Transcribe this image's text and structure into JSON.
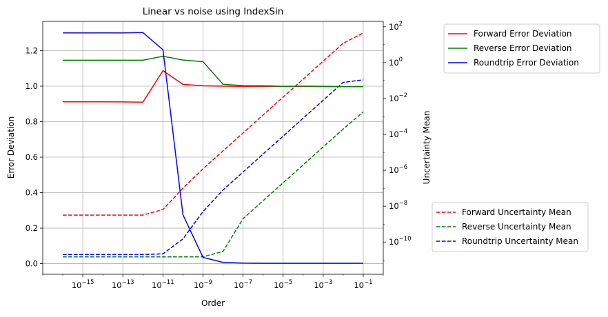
{
  "chart_data": {
    "type": "line",
    "title": "Linear vs noise using IndexSin",
    "xlabel": "Order",
    "ylabel_left": "Error Deviation",
    "ylabel_right": "Uncertainty Mean",
    "x_scale": "log",
    "xlim": [
      1e-17,
      1
    ],
    "x_ticks": [
      1e-15,
      1e-13,
      1e-11,
      1e-09,
      1e-07,
      1e-05,
      0.001,
      0.1
    ],
    "x_tick_labels": [
      {
        "base": "10",
        "exp": "−15"
      },
      {
        "base": "10",
        "exp": "−13"
      },
      {
        "base": "10",
        "exp": "−11"
      },
      {
        "base": "10",
        "exp": "−9"
      },
      {
        "base": "10",
        "exp": "−7"
      },
      {
        "base": "10",
        "exp": "−5"
      },
      {
        "base": "10",
        "exp": "−3"
      },
      {
        "base": "10",
        "exp": "−1"
      }
    ],
    "y_left_lim": [
      -0.06,
      1.365
    ],
    "y_left_ticks": [
      0.0,
      0.2,
      0.4,
      0.6,
      0.8,
      1.0,
      1.2
    ],
    "y_left_tick_labels": [
      "0.0",
      "0.2",
      "0.4",
      "0.6",
      "0.8",
      "1.0",
      "1.2"
    ],
    "y_right_scale": "log",
    "y_right_lim": [
      1.6e-12,
      200
    ],
    "y_right_ticks": [
      1e-10,
      1e-08,
      1e-06,
      0.0001,
      0.01,
      1,
      100
    ],
    "y_right_tick_labels": [
      {
        "base": "10",
        "exp": "−10"
      },
      {
        "base": "10",
        "exp": "−8"
      },
      {
        "base": "10",
        "exp": "−6"
      },
      {
        "base": "10",
        "exp": "−4"
      },
      {
        "base": "10",
        "exp": "−2"
      },
      {
        "base": "10",
        "exp": "0"
      },
      {
        "base": "10",
        "exp": "2"
      }
    ],
    "grid": true,
    "x": [
      1e-16,
      1e-15,
      1e-14,
      1e-13,
      1e-12,
      1e-11,
      1e-10,
      1e-09,
      1e-08,
      1e-07,
      1e-06,
      1e-05,
      0.0001,
      0.001,
      0.01,
      0.1
    ],
    "series_left": [
      {
        "name": "Forward Error Deviation",
        "color": "#ff0000",
        "axis": "left",
        "style": "solid",
        "values": [
          0.912,
          0.912,
          0.912,
          0.911,
          0.91,
          1.087,
          1.01,
          1.002,
          1.0,
          0.999,
          0.999,
          0.999,
          0.999,
          0.998,
          0.997,
          0.997
        ]
      },
      {
        "name": "Reverse Error Deviation",
        "color": "#008000",
        "axis": "left",
        "style": "solid",
        "values": [
          1.146,
          1.146,
          1.146,
          1.146,
          1.146,
          1.168,
          1.147,
          1.138,
          1.011,
          1.003,
          1.002,
          0.999,
          1.0,
          0.999,
          0.997,
          0.998
        ]
      },
      {
        "name": "Roundtrip Error Deviation",
        "color": "#0000ff",
        "axis": "left",
        "style": "solid",
        "values": [
          1.3,
          1.3,
          1.3,
          1.3,
          1.302,
          1.205,
          0.275,
          0.035,
          0.007,
          0.003,
          0.002,
          0.002,
          0.002,
          0.002,
          0.002,
          0.002
        ]
      }
    ],
    "series_right": [
      {
        "name": "Forward Uncertainty Mean",
        "color": "#ff0000",
        "axis": "right",
        "style": "dashed",
        "values": [
          3.2e-09,
          3.2e-09,
          3.2e-09,
          3.2e-09,
          3.2e-09,
          6.5e-09,
          1e-07,
          1.2e-06,
          1.2e-05,
          0.00012,
          0.0012,
          0.012,
          0.12,
          1.2,
          12.0,
          45.0
        ]
      },
      {
        "name": "Reverse Uncertainty Mean",
        "color": "#008000",
        "axis": "right",
        "style": "dashed",
        "values": [
          1.5e-11,
          1.5e-11,
          1.5e-11,
          1.5e-11,
          1.5e-11,
          1.5e-11,
          1.5e-11,
          1.5e-11,
          3e-11,
          2e-09,
          2e-08,
          2e-07,
          2e-06,
          2e-05,
          0.0002,
          0.0018
        ]
      },
      {
        "name": "Roundtrip Uncertainty Mean",
        "color": "#0000ff",
        "axis": "right",
        "style": "dashed",
        "values": [
          2e-11,
          2e-11,
          2e-11,
          2e-11,
          2e-11,
          2.2e-11,
          1.5e-10,
          5e-09,
          8e-08,
          8e-07,
          8e-06,
          8e-05,
          0.0008,
          0.008,
          0.08,
          0.11
        ]
      }
    ],
    "legends": [
      {
        "placement": "upper-right-outside",
        "entries": [
          "Forward Error Deviation",
          "Reverse Error Deviation",
          "Roundtrip Error Deviation"
        ]
      },
      {
        "placement": "lower-right-outside",
        "entries": [
          "Forward Uncertainty Mean",
          "Reverse Uncertainty Mean",
          "Roundtrip Uncertainty Mean"
        ]
      }
    ]
  }
}
